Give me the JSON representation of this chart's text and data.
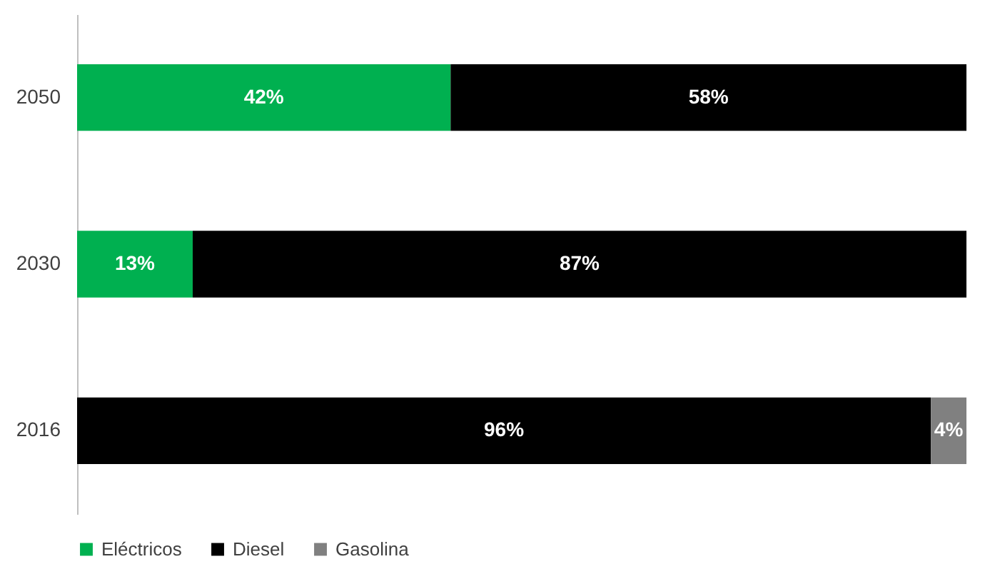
{
  "chart_data": {
    "type": "bar",
    "orientation": "horizontal",
    "stacked": true,
    "categories": [
      "2050",
      "2030",
      "2016"
    ],
    "series": [
      {
        "name": "Eléctricos",
        "color": "#00b050",
        "values": [
          42,
          13,
          null
        ],
        "value_labels": [
          "42%",
          "13%",
          null
        ]
      },
      {
        "name": "Diesel",
        "color": "#000000",
        "values": [
          58,
          87,
          96
        ],
        "value_labels": [
          "58%",
          "87%",
          "96%"
        ]
      },
      {
        "name": "Gasolina",
        "color": "#808080",
        "values": [
          null,
          null,
          4
        ],
        "value_labels": [
          null,
          null,
          "4%"
        ]
      }
    ],
    "legend": "bottom"
  }
}
